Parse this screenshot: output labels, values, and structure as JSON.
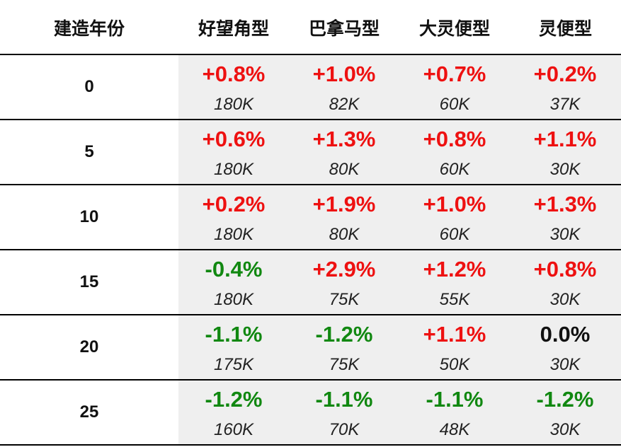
{
  "chart_data": {
    "type": "table",
    "columns": [
      "建造年份",
      "好望角型",
      "巴拿马型",
      "大灵便型",
      "灵便型"
    ],
    "rows": [
      {
        "year": "0",
        "cells": [
          {
            "change": "+0.8%",
            "price": "180K"
          },
          {
            "change": "+1.0%",
            "price": "82K"
          },
          {
            "change": "+0.7%",
            "price": "60K"
          },
          {
            "change": "+0.2%",
            "price": "37K"
          }
        ]
      },
      {
        "year": "5",
        "cells": [
          {
            "change": "+0.6%",
            "price": "180K"
          },
          {
            "change": "+1.3%",
            "price": "80K"
          },
          {
            "change": "+0.8%",
            "price": "60K"
          },
          {
            "change": "+1.1%",
            "price": "30K"
          }
        ]
      },
      {
        "year": "10",
        "cells": [
          {
            "change": "+0.2%",
            "price": "180K"
          },
          {
            "change": "+1.9%",
            "price": "80K"
          },
          {
            "change": "+1.0%",
            "price": "60K"
          },
          {
            "change": "+1.3%",
            "price": "30K"
          }
        ]
      },
      {
        "year": "15",
        "cells": [
          {
            "change": "-0.4%",
            "price": "180K"
          },
          {
            "change": "+2.9%",
            "price": "75K"
          },
          {
            "change": "+1.2%",
            "price": "55K"
          },
          {
            "change": "+0.8%",
            "price": "30K"
          }
        ]
      },
      {
        "year": "20",
        "cells": [
          {
            "change": "-1.1%",
            "price": "175K"
          },
          {
            "change": "-1.2%",
            "price": "75K"
          },
          {
            "change": "+1.1%",
            "price": "50K"
          },
          {
            "change": "0.0%",
            "price": "30K"
          }
        ]
      },
      {
        "year": "25",
        "cells": [
          {
            "change": "-1.2%",
            "price": "160K"
          },
          {
            "change": "-1.1%",
            "price": "70K"
          },
          {
            "change": "-1.1%",
            "price": "48K"
          },
          {
            "change": "-1.2%",
            "price": "30K"
          }
        ]
      }
    ]
  },
  "colors": {
    "positive": "#ee1111",
    "negative": "#118811",
    "neutral": "#111111",
    "shade": "#efefef"
  }
}
